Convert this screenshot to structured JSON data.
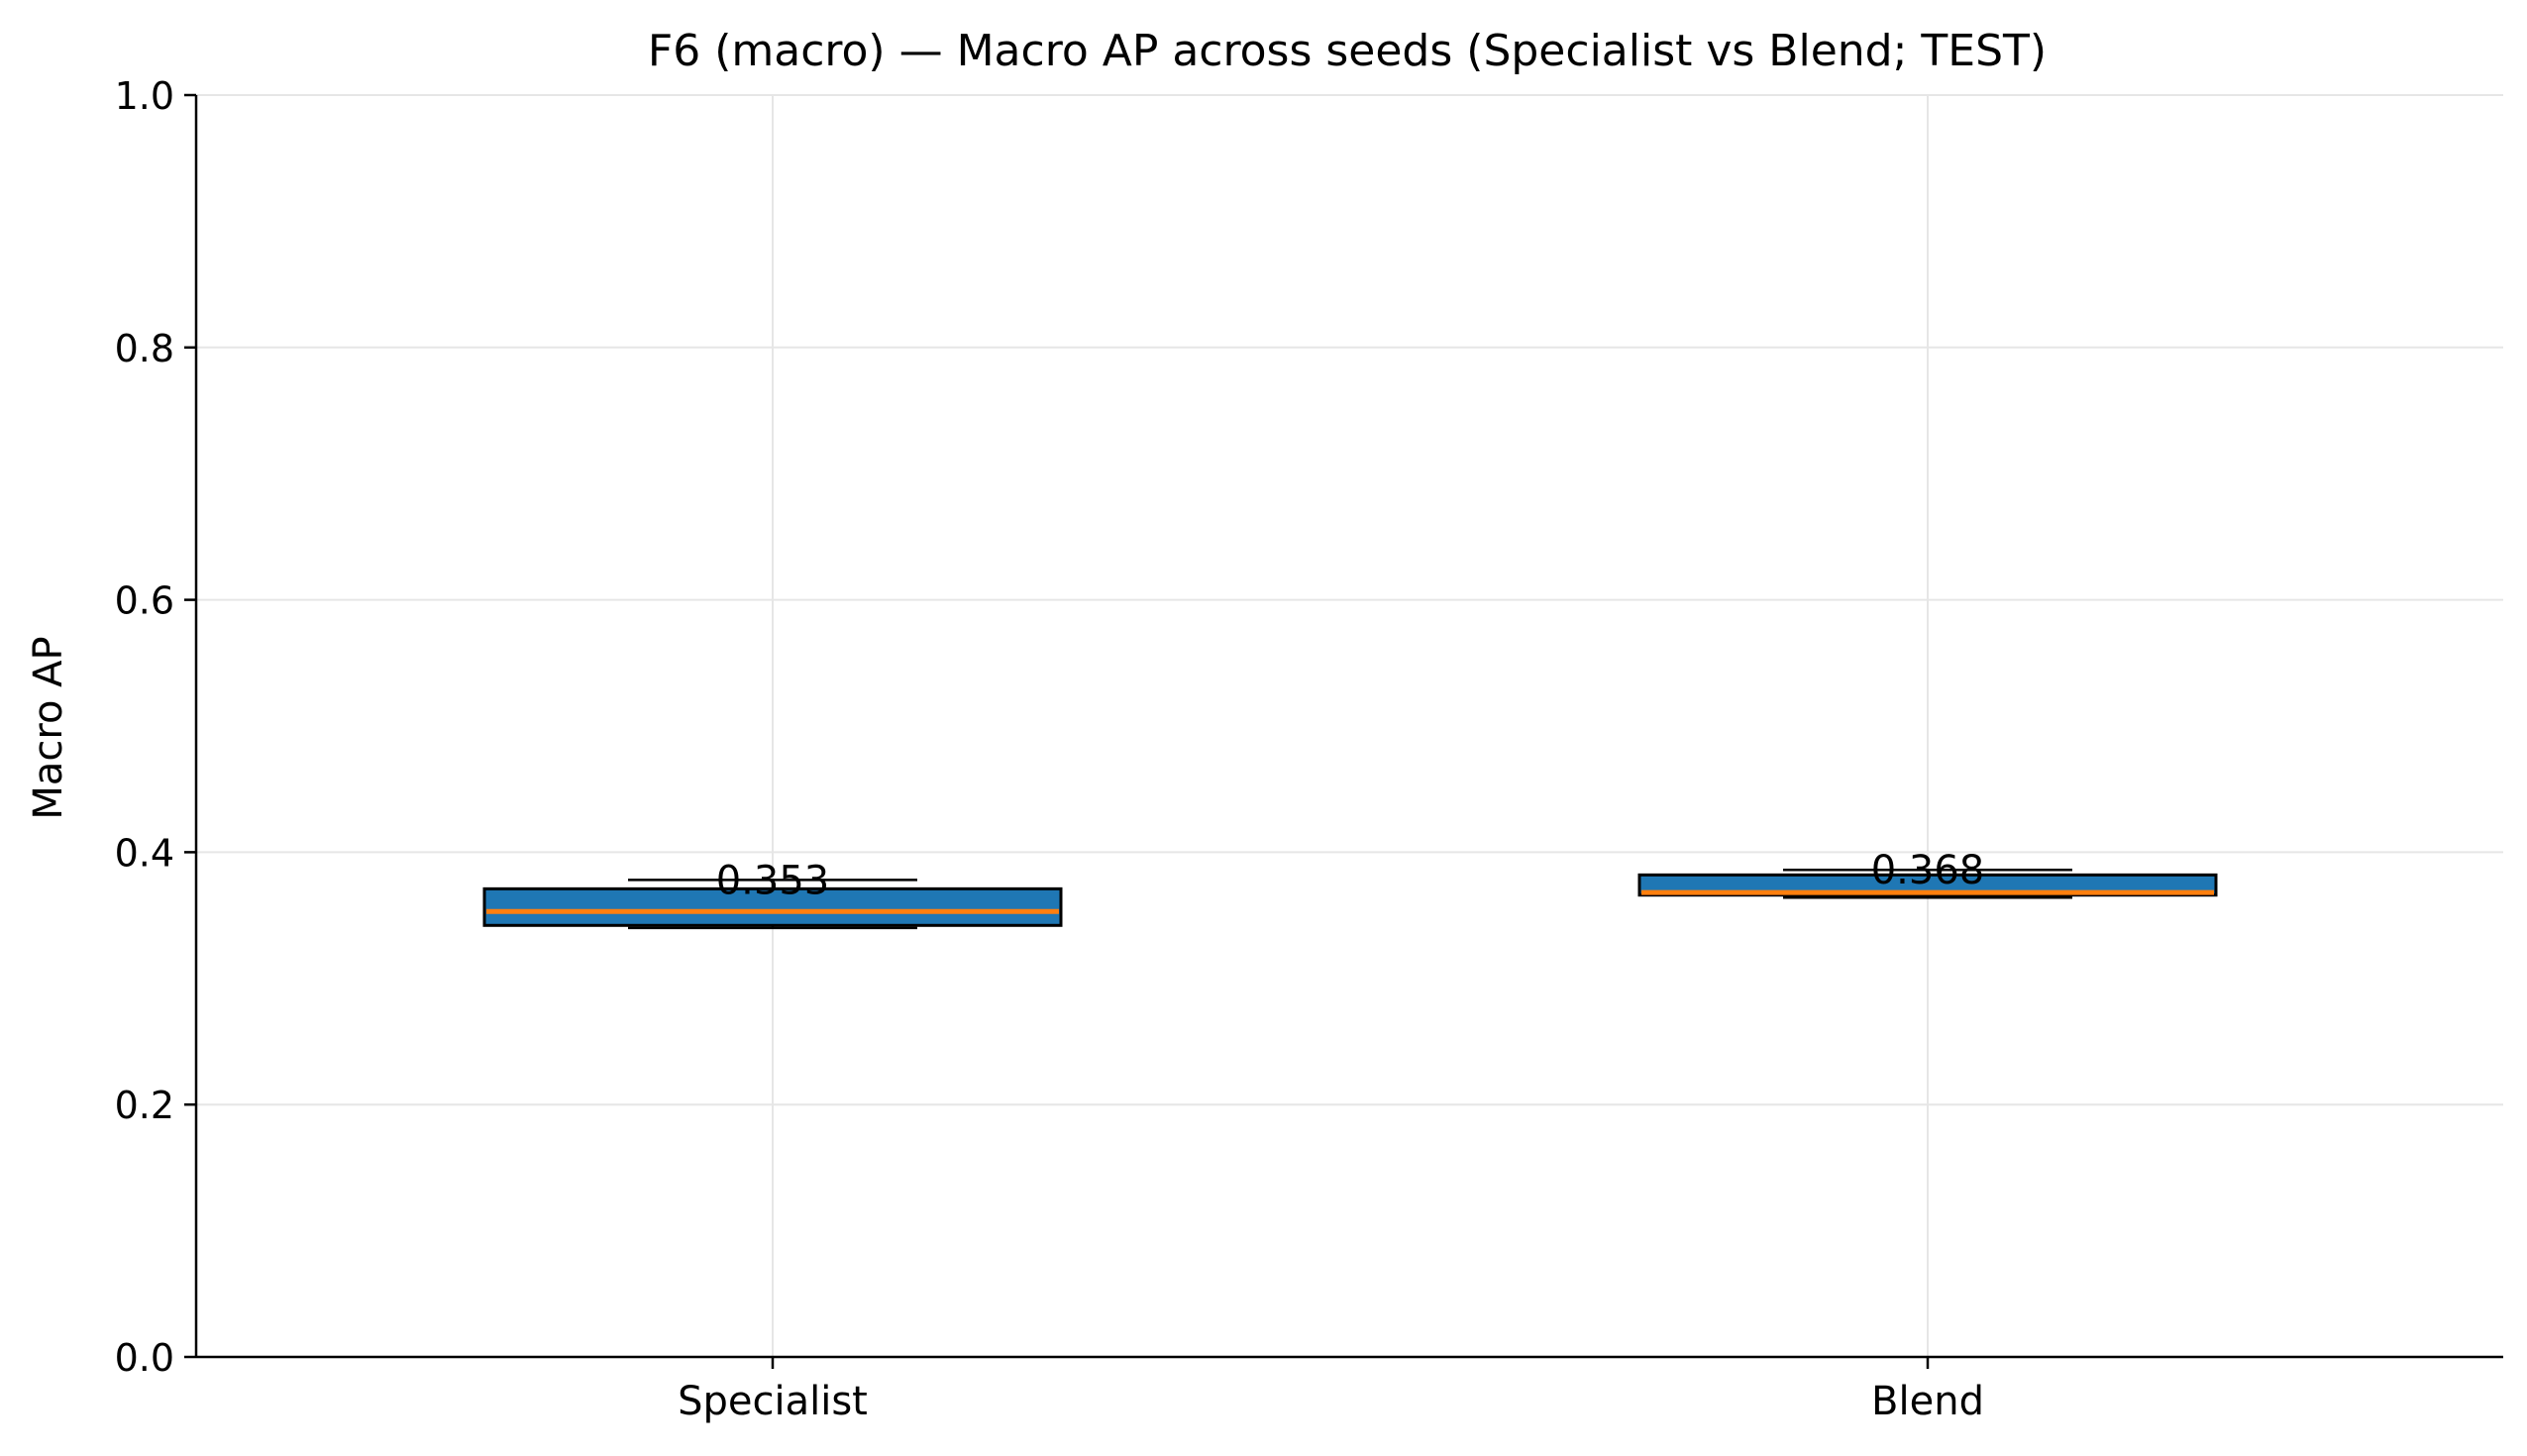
{
  "chart_data": {
    "type": "box",
    "title": "F6 (macro) — Macro AP across seeds (Specialist vs Blend; TEST)",
    "xlabel": "",
    "ylabel": "Macro AP",
    "ylim": [
      0.0,
      1.0
    ],
    "yticks": [
      0.0,
      0.2,
      0.4,
      0.6,
      0.8,
      1.0
    ],
    "ytick_labels": [
      "0.0",
      "0.2",
      "0.4",
      "0.6",
      "0.8",
      "1.0"
    ],
    "categories": [
      "Specialist",
      "Blend"
    ],
    "boxes": [
      {
        "category": "Specialist",
        "whisker_low": 0.34,
        "q1": 0.342,
        "median": 0.353,
        "q3": 0.371,
        "whisker_high": 0.378,
        "label": "0.353"
      },
      {
        "category": "Blend",
        "whisker_low": 0.364,
        "q1": 0.366,
        "median": 0.368,
        "q3": 0.382,
        "whisker_high": 0.386,
        "label": "0.368"
      }
    ],
    "grid": true,
    "colors": {
      "box_fill": "#1f77b4",
      "median_line": "#ff7f0e",
      "box_edge": "#000000",
      "grid": "#e6e6e6"
    }
  }
}
